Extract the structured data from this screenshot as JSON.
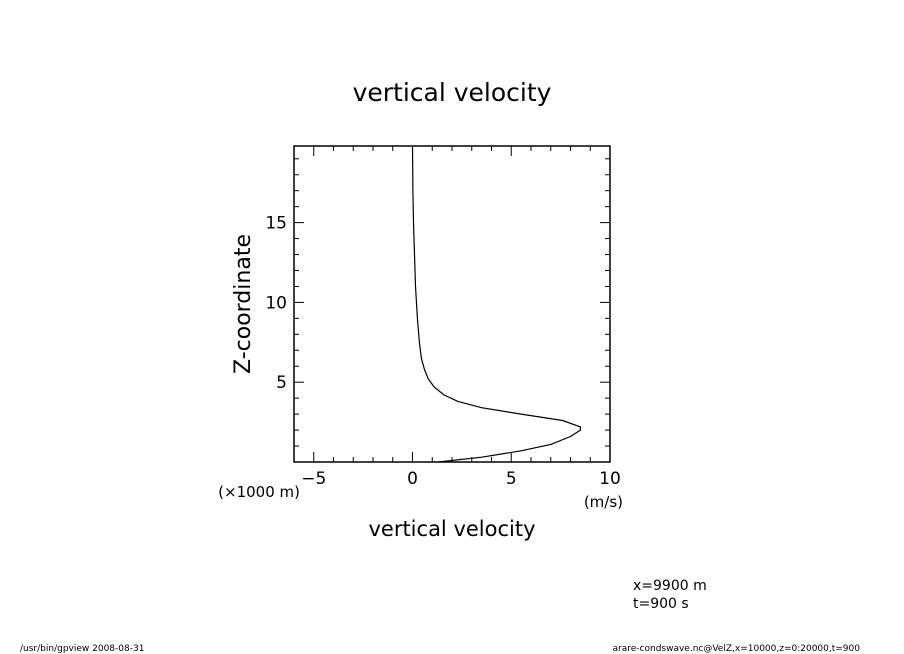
{
  "chart_data": {
    "type": "line",
    "title": "vertical velocity",
    "xlabel": "vertical velocity",
    "xunit": "(m/s)",
    "ylabel": "Z-coordinate",
    "yunit": "(×1000 m)",
    "xlim": [
      -6,
      10
    ],
    "ylim": [
      0,
      19.8
    ],
    "xticks": [
      -5,
      0,
      5,
      10
    ],
    "yticks": [
      5,
      10,
      15
    ],
    "grid": false,
    "series": [
      {
        "points": [
          [
            1.3,
            0.0
          ],
          [
            3.5,
            0.3
          ],
          [
            5.5,
            0.7
          ],
          [
            7.0,
            1.1
          ],
          [
            8.0,
            1.6
          ],
          [
            8.5,
            2.0
          ],
          [
            8.5,
            2.2
          ],
          [
            7.6,
            2.6
          ],
          [
            5.5,
            3.0
          ],
          [
            3.5,
            3.4
          ],
          [
            2.3,
            3.8
          ],
          [
            1.6,
            4.2
          ],
          [
            1.1,
            4.7
          ],
          [
            0.8,
            5.2
          ],
          [
            0.6,
            5.8
          ],
          [
            0.45,
            6.5
          ],
          [
            0.35,
            7.5
          ],
          [
            0.25,
            9.0
          ],
          [
            0.15,
            11.0
          ],
          [
            0.1,
            13.0
          ],
          [
            0.05,
            15.0
          ],
          [
            0.02,
            17.0
          ],
          [
            0.0,
            19.8
          ]
        ]
      }
    ]
  },
  "annotations": {
    "x_value": "x=9900  m",
    "t_value": "t=900  s"
  },
  "footer": {
    "left": "/usr/bin/gpview   2008-08-31",
    "right": "arare-condswave.nc@VelZ,x=10000,z=0:20000,t=900"
  }
}
